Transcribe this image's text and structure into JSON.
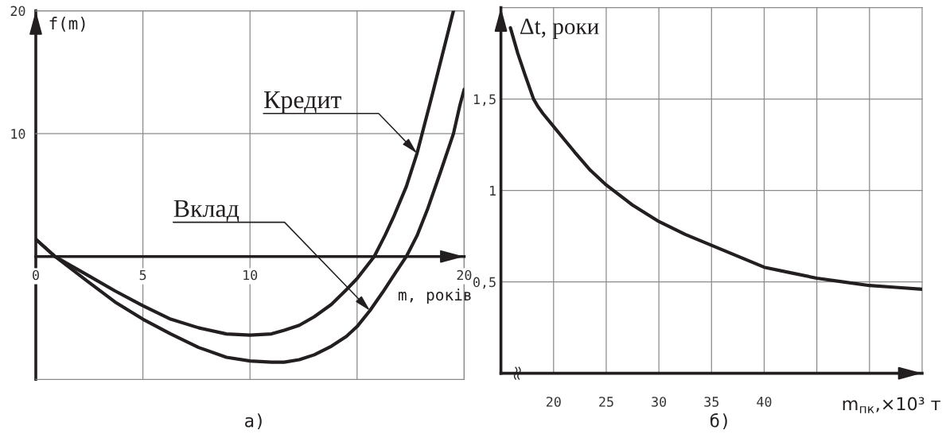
{
  "chart_data": [
    {
      "type": "line",
      "xlabel": "m, років",
      "ylabel": "f(m)",
      "xlim": [
        0,
        20
      ],
      "ylim": [
        -10,
        20
      ],
      "xticks": [
        0,
        5,
        10,
        {
          "value": 15,
          "label": null
        },
        20
      ],
      "yticks": [
        {
          "value": -10,
          "label": null
        },
        10,
        20
      ],
      "grid": true,
      "series": [
        {
          "color": "#231f20",
          "x": [
            0,
            0.9,
            2.4,
            3.7,
            5.0,
            6.3,
            7.6,
            8.9,
            10.0,
            11.0,
            11.6,
            12.3,
            13.0,
            13.8,
            14.5,
            15.0,
            15.8,
            16.3,
            16.7,
            17.3,
            17.8,
            18.5,
            19.5
          ],
          "values": [
            1.4,
            0,
            -1.5,
            -2.8,
            -4.0,
            -5.1,
            -5.8,
            -6.3,
            -6.4,
            -6.3,
            -6.0,
            -5.6,
            -4.9,
            -3.9,
            -2.7,
            -1.8,
            0,
            1.7,
            3.2,
            5.7,
            8.4,
            13.1,
            20
          ]
        },
        {
          "color": "#231f20",
          "x": [
            0,
            0.9,
            2.4,
            3.7,
            5.0,
            6.3,
            7.6,
            8.9,
            10.0,
            11.0,
            11.6,
            12.3,
            13.0,
            13.8,
            14.5,
            15.0,
            15.6,
            16.2,
            16.8,
            17.3,
            17.8,
            18.3,
            18.9,
            19.5,
            19.8,
            20.0
          ],
          "values": [
            1.4,
            0,
            -2.0,
            -3.7,
            -5.1,
            -6.3,
            -7.4,
            -8.2,
            -8.5,
            -8.6,
            -8.6,
            -8.4,
            -8.0,
            -7.3,
            -6.5,
            -5.7,
            -4.4,
            -2.9,
            -1.3,
            0,
            1.7,
            3.9,
            6.9,
            10.0,
            12.3,
            13.6
          ]
        }
      ],
      "annotations": [
        {
          "text": "Кредит",
          "x": 17.8,
          "y": 8.4
        },
        {
          "text": "Вклад",
          "x": 15.6,
          "y": -4.4
        },
        "а)"
      ]
    },
    {
      "type": "line",
      "xlabel": "m$_{пк}$,×10³ т",
      "ylabel": "Δt, роки",
      "xlim": [
        15,
        55
      ],
      "ylim": [
        0,
        2
      ],
      "xticks": [
        20,
        25,
        30,
        35,
        40,
        {
          "value": 45,
          "label": null
        },
        {
          "value": 50,
          "label": null
        }
      ],
      "yticks": [
        {
          "value": 0.5,
          "label": "0,5"
        },
        1,
        {
          "value": 1.5,
          "label": "1,5"
        }
      ],
      "grid": true,
      "color": "#231f20",
      "x": [
        15.9,
        16.6,
        17.3,
        18.1,
        18.5,
        19.0,
        20,
        21,
        22,
        23.5,
        25,
        27.5,
        30,
        32.5,
        35,
        37.5,
        40,
        42.5,
        45,
        47.5,
        50,
        52.5,
        55
      ],
      "values": [
        1.89,
        1.75,
        1.63,
        1.5,
        1.46,
        1.42,
        1.35,
        1.28,
        1.21,
        1.11,
        1.03,
        0.92,
        0.83,
        0.76,
        0.7,
        0.64,
        0.58,
        0.55,
        0.52,
        0.5,
        0.48,
        0.47,
        0.46
      ],
      "annotations": [
        "б)"
      ]
    }
  ]
}
